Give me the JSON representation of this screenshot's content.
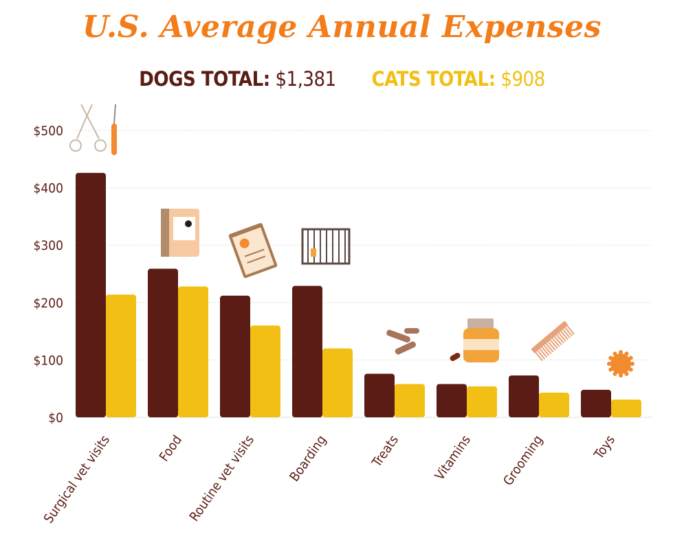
{
  "header": {
    "title": "U.S. Average Annual Expenses",
    "dogs_label": "DOGS TOTAL:",
    "dogs_total": "$1,381",
    "cats_label": "CATS TOTAL:",
    "cats_total": "$908"
  },
  "colors": {
    "dogs": "#5a1c14",
    "cats": "#f2c014",
    "title": "#f27d1a",
    "grid": "#dddddd"
  },
  "chart_data": {
    "type": "bar",
    "title": "U.S. Average Annual Expenses",
    "xlabel": "",
    "ylabel": "",
    "ylim": [
      0,
      500
    ],
    "yticks": [
      "$0",
      "$100",
      "$200",
      "$300",
      "$400",
      "$500"
    ],
    "grid": true,
    "categories": [
      "Surgical vet visits",
      "Food",
      "Routine vet visits",
      "Boarding",
      "Treats",
      "Vitamins",
      "Grooming",
      "Toys"
    ],
    "series": [
      {
        "name": "DOGS",
        "values": [
          426,
          259,
          212,
          229,
          76,
          58,
          73,
          48
        ]
      },
      {
        "name": "CATS",
        "values": [
          214,
          228,
          160,
          120,
          58,
          54,
          43,
          31
        ]
      }
    ],
    "icons": [
      "scissors-scalpel-icon",
      "food-bag-icon",
      "clipboard-icon",
      "cage-icon",
      "bone-treats-icon",
      "vitamin-jar-icon",
      "comb-icon",
      "ball-toy-icon"
    ]
  }
}
